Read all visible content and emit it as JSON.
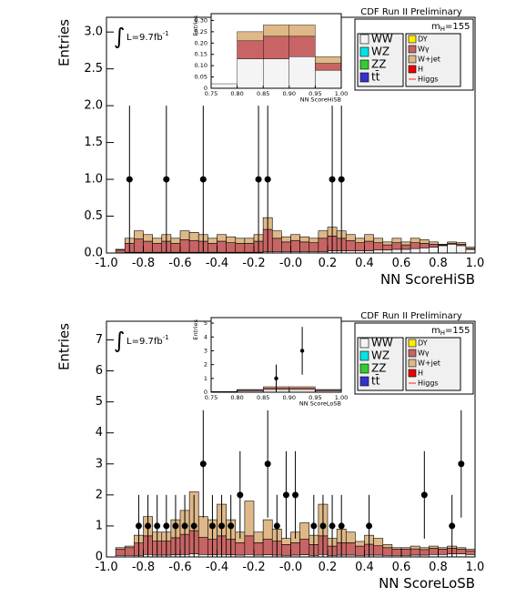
{
  "chart_data": [
    {
      "type": "histogram",
      "xlabel": "NN ScoreHiSB",
      "ylabel": "Entries",
      "header": "CDF Run II Preliminary",
      "mass_label": "m",
      "mass_sub": "H",
      "mass_value": "=155",
      "integral": "∫",
      "lumi": "L=9.7fb",
      "lumi_sup": "-1",
      "xlim": [
        -1.0,
        1.0
      ],
      "ylim": [
        0,
        3.2
      ],
      "xticks": [
        {
          "value": -1.0,
          "label": "-1.0"
        },
        -0.8,
        -0.6,
        -0.4,
        -0.2,
        {
          "value": 0,
          "label": "-0.0"
        },
        0.2,
        0.4,
        0.6,
        0.8,
        {
          "value": 1.0,
          "label": "1.0"
        }
      ],
      "yticks": [
        {
          "value": 0,
          "label": "0.0"
        },
        0.5,
        {
          "value": 1,
          "label": "1.0"
        },
        1.5,
        {
          "value": 2,
          "label": "2.0"
        },
        2.5,
        {
          "value": 3,
          "label": "3.0"
        }
      ],
      "bins": [
        -1.0,
        -0.95,
        -0.9,
        -0.85,
        -0.8,
        -0.75,
        -0.7,
        -0.65,
        -0.6,
        -0.55,
        -0.5,
        -0.45,
        -0.4,
        -0.35,
        -0.3,
        -0.25,
        -0.2,
        -0.15,
        -0.1,
        -0.05,
        0,
        0.05,
        0.1,
        0.15,
        0.2,
        0.25,
        0.3,
        0.35,
        0.4,
        0.45,
        0.5,
        0.55,
        0.6,
        0.65,
        0.7,
        0.75,
        0.8,
        0.85,
        0.9,
        0.95,
        1.0
      ],
      "series": [
        {
          "name": "WW",
          "color": "#f4f4f4",
          "values": [
            0,
            0,
            0.01,
            0.01,
            0.01,
            0.01,
            0.01,
            0.01,
            0.01,
            0.01,
            0.01,
            0.01,
            0.01,
            0.01,
            0.01,
            0.01,
            0.01,
            0.02,
            0.02,
            0.02,
            0.02,
            0.02,
            0.02,
            0.02,
            0.03,
            0.03,
            0.03,
            0.03,
            0.03,
            0.04,
            0.04,
            0.05,
            0.05,
            0.06,
            0.07,
            0.08,
            0.1,
            0.12,
            0.1,
            0.05
          ]
        },
        {
          "name": "Wγ",
          "color": "#c86464",
          "values": [
            0,
            0.04,
            0.12,
            0.18,
            0.15,
            0.12,
            0.15,
            0.12,
            0.17,
            0.16,
            0.15,
            0.12,
            0.15,
            0.13,
            0.12,
            0.12,
            0.15,
            0.3,
            0.18,
            0.13,
            0.15,
            0.13,
            0.12,
            0.18,
            0.2,
            0.17,
            0.14,
            0.11,
            0.13,
            0.1,
            0.07,
            0.09,
            0.06,
            0.08,
            0.06,
            0.04,
            0.01,
            0.01,
            0.02,
            0.01
          ]
        },
        {
          "name": "W+jet",
          "color": "#deb887",
          "values": [
            0,
            0.01,
            0.07,
            0.11,
            0.09,
            0.07,
            0.09,
            0.07,
            0.12,
            0.11,
            0.09,
            0.07,
            0.09,
            0.08,
            0.07,
            0.07,
            0.09,
            0.16,
            0.1,
            0.07,
            0.08,
            0.07,
            0.06,
            0.1,
            0.12,
            0.1,
            0.08,
            0.06,
            0.09,
            0.06,
            0.04,
            0.06,
            0.04,
            0.06,
            0.05,
            0.03,
            0.01,
            0.02,
            0.02,
            0.02
          ]
        }
      ],
      "extra_legend": [
        {
          "name": "WZ",
          "color": "#00e5e5"
        },
        {
          "name": "ZZ",
          "color": "#33cc33"
        },
        {
          "name": "tt̄",
          "color": "#3333cc"
        },
        {
          "name": "DY",
          "color": "#ffee00"
        },
        {
          "name": "H",
          "color": "#ee0000"
        },
        {
          "name": "Higgs",
          "color": "#ff6666"
        }
      ],
      "points": {
        "x": [
          -0.875,
          -0.675,
          -0.475,
          -0.175,
          -0.125,
          0.225,
          0.275
        ],
        "values": [
          1,
          1,
          1,
          1,
          1,
          1,
          1
        ],
        "errors": [
          1,
          1,
          1,
          1,
          1,
          1,
          1
        ]
      },
      "inset": {
        "xlabel": "NN ScoreHiSB",
        "ylabel": "Entries",
        "xlim": [
          0.75,
          1.0
        ],
        "ylim": [
          0,
          0.33
        ],
        "xticks": [
          0.75,
          {
            "value": 0.8,
            "label": "0.80"
          },
          0.85,
          {
            "value": 0.9,
            "label": "0.90"
          },
          0.95,
          {
            "value": 1.0,
            "label": "1.00"
          }
        ],
        "yticks": [
          0,
          0.05,
          {
            "value": 0.1,
            "label": "0.10"
          },
          0.15,
          {
            "value": 0.2,
            "label": "0.20"
          },
          0.25,
          {
            "value": 0.3,
            "label": "0.30"
          }
        ],
        "bins": [
          0.75,
          0.8,
          0.85,
          0.9,
          0.95,
          1.0
        ],
        "series": [
          {
            "name": "WW",
            "color": "#f4f4f4",
            "values": [
              0.02,
              0.13,
              0.13,
              0.14,
              0.08
            ]
          },
          {
            "name": "Wγ",
            "color": "#c86464",
            "values": [
              0,
              0.08,
              0.1,
              0.09,
              0.03
            ]
          },
          {
            "name": "W+jet",
            "color": "#deb887",
            "values": [
              0,
              0.04,
              0.05,
              0.05,
              0.03
            ]
          }
        ]
      }
    },
    {
      "type": "histogram",
      "xlabel": "NN ScoreLoSB",
      "ylabel": "Entries",
      "header": "CDF Run II Preliminary",
      "mass_label": "m",
      "mass_sub": "H",
      "mass_value": "=155",
      "integral": "∫",
      "lumi": "L=9.7fb",
      "lumi_sup": "-1",
      "xlim": [
        -1.0,
        1.0
      ],
      "ylim": [
        0,
        7.6
      ],
      "xticks": [
        {
          "value": -1.0,
          "label": "-1.0"
        },
        -0.8,
        -0.6,
        -0.4,
        -0.2,
        {
          "value": 0,
          "label": "-0.0"
        },
        0.2,
        0.4,
        0.6,
        0.8,
        {
          "value": 1.0,
          "label": "1.0"
        }
      ],
      "yticks": [
        0,
        1,
        2,
        3,
        4,
        5,
        6,
        7
      ],
      "bins": [
        -1.0,
        -0.95,
        -0.9,
        -0.85,
        -0.8,
        -0.75,
        -0.7,
        -0.65,
        -0.6,
        -0.55,
        -0.5,
        -0.45,
        -0.4,
        -0.35,
        -0.3,
        -0.25,
        -0.2,
        -0.15,
        -0.1,
        -0.05,
        0,
        0.05,
        0.1,
        0.15,
        0.2,
        0.25,
        0.3,
        0.35,
        0.4,
        0.45,
        0.5,
        0.55,
        0.6,
        0.65,
        0.7,
        0.75,
        0.8,
        0.85,
        0.9,
        0.95,
        1.0
      ],
      "series": [
        {
          "name": "WW",
          "color": "#f4f4f4",
          "values": [
            0,
            0.05,
            0.05,
            0.05,
            0.08,
            0.06,
            0.06,
            0.07,
            0.08,
            0.1,
            0.08,
            0.07,
            0.08,
            0.07,
            0.06,
            0.08,
            0.06,
            0.07,
            0.06,
            0.05,
            0.06,
            0.07,
            0.05,
            0.08,
            0.05,
            0.06,
            0.06,
            0.05,
            0.06,
            0.06,
            0.05,
            0.05,
            0.05,
            0.06,
            0.06,
            0.08,
            0.08,
            0.1,
            0.1,
            0.08
          ]
        },
        {
          "name": "Wγ",
          "color": "#c86464",
          "values": [
            0,
            0.2,
            0.25,
            0.4,
            0.6,
            0.45,
            0.45,
            0.55,
            0.65,
            0.75,
            0.55,
            0.5,
            0.6,
            0.5,
            0.4,
            0.6,
            0.4,
            0.5,
            0.45,
            0.35,
            0.4,
            0.5,
            0.35,
            0.6,
            0.3,
            0.4,
            0.4,
            0.3,
            0.35,
            0.3,
            0.25,
            0.2,
            0.2,
            0.2,
            0.18,
            0.2,
            0.17,
            0.18,
            0.15,
            0.12
          ]
        },
        {
          "name": "W+jet",
          "color": "#deb887",
          "values": [
            0,
            0.05,
            0.05,
            0.25,
            0.62,
            0.29,
            0.29,
            0.58,
            0.77,
            1.25,
            0.67,
            0.63,
            1.02,
            0.63,
            0.34,
            1.12,
            0.34,
            0.63,
            0.39,
            0.2,
            0.34,
            0.53,
            0.3,
            1.02,
            0.25,
            0.44,
            0.34,
            0.15,
            0.29,
            0.24,
            0.1,
            0.05,
            0.05,
            0.09,
            0.06,
            0.07,
            0.05,
            0.07,
            0.05,
            0.05
          ]
        }
      ],
      "extra_legend": [
        {
          "name": "WZ",
          "color": "#00e5e5"
        },
        {
          "name": "ZZ",
          "color": "#33cc33"
        },
        {
          "name": "tt̄",
          "color": "#3333cc"
        },
        {
          "name": "DY",
          "color": "#ffee00"
        },
        {
          "name": "H",
          "color": "#ee0000"
        },
        {
          "name": "Higgs",
          "color": "#ff6666"
        }
      ],
      "points": {
        "x": [
          -0.825,
          -0.775,
          -0.725,
          -0.675,
          -0.625,
          -0.575,
          -0.525,
          -0.475,
          -0.425,
          -0.375,
          -0.325,
          -0.275,
          -0.125,
          -0.075,
          -0.025,
          0.025,
          0.125,
          0.175,
          0.225,
          0.275,
          0.425,
          0.725,
          0.875,
          0.925
        ],
        "values": [
          1,
          1,
          1,
          1,
          1,
          1,
          1,
          3,
          1,
          1,
          1,
          2,
          3,
          1,
          2,
          2,
          1,
          1,
          1,
          1,
          1,
          2,
          1,
          3
        ],
        "errors": [
          1,
          1,
          1,
          1,
          1,
          1,
          1,
          1.73,
          1,
          1,
          1,
          1.41,
          1.73,
          1,
          1.41,
          1.41,
          1,
          1,
          1,
          1,
          1,
          1.41,
          1,
          1.73
        ]
      },
      "inset": {
        "xlabel": "NN ScoreLoSB",
        "ylabel": "Entries",
        "xlim": [
          0.75,
          1.0
        ],
        "ylim": [
          0,
          5.4
        ],
        "xticks": [
          0.75,
          {
            "value": 0.8,
            "label": "0.80"
          },
          0.85,
          {
            "value": 0.9,
            "label": "0.90"
          },
          0.95,
          {
            "value": 1.0,
            "label": "1.00"
          }
        ],
        "yticks": [
          0,
          1,
          2,
          3,
          4,
          5
        ],
        "bins": [
          0.75,
          0.8,
          0.85,
          0.9,
          0.95,
          1.0
        ],
        "series": [
          {
            "name": "WW",
            "color": "#f4f4f4",
            "values": [
              0.02,
              0.1,
              0.2,
              0.2,
              0.1
            ]
          },
          {
            "name": "Wγ",
            "color": "#c86464",
            "values": [
              0.02,
              0.06,
              0.12,
              0.12,
              0.06
            ]
          },
          {
            "name": "W+jet",
            "color": "#deb887",
            "values": [
              0.01,
              0.04,
              0.08,
              0.08,
              0.04
            ]
          }
        ],
        "points": {
          "x": [
            0.875,
            0.925
          ],
          "values": [
            1,
            3
          ],
          "errors": [
            1,
            1.73
          ]
        }
      }
    }
  ]
}
